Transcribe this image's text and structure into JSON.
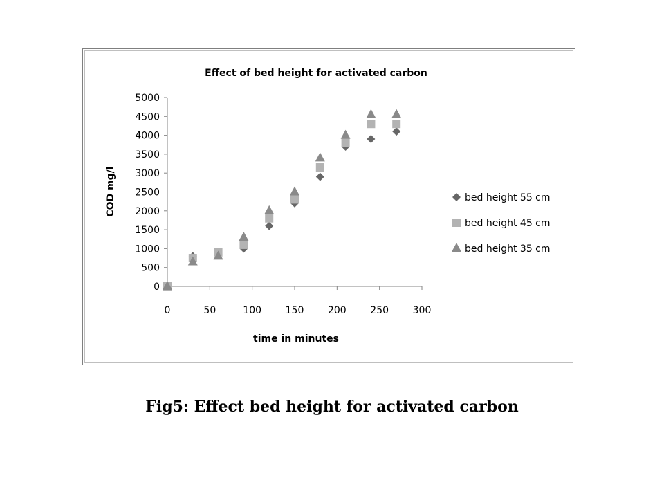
{
  "caption": "Fig5: Effect bed height for activated carbon",
  "chart_data": {
    "type": "scatter",
    "title": "Effect of bed height for activated carbon",
    "xlabel": "time in minutes",
    "ylabel": "COD mg/l",
    "xlim": [
      0,
      300
    ],
    "ylim": [
      0,
      5000
    ],
    "x_ticks": [
      0,
      50,
      100,
      150,
      200,
      250,
      300
    ],
    "y_ticks": [
      0,
      500,
      1000,
      1500,
      2000,
      2500,
      3000,
      3500,
      4000,
      4500,
      5000
    ],
    "grid": false,
    "legend_position": "right",
    "series": [
      {
        "name": "bed height 55 cm",
        "marker": "diamond",
        "color": "#666666",
        "x": [
          0,
          30,
          60,
          90,
          120,
          150,
          180,
          210,
          240,
          270
        ],
        "y": [
          0,
          800,
          850,
          1000,
          1600,
          2200,
          2900,
          3700,
          3900,
          4100
        ]
      },
      {
        "name": "bed height 45 cm",
        "marker": "square",
        "color": "#b3b3b3",
        "x": [
          0,
          30,
          60,
          90,
          120,
          150,
          180,
          210,
          240,
          270
        ],
        "y": [
          0,
          750,
          900,
          1100,
          1800,
          2300,
          3150,
          3800,
          4300,
          4300
        ]
      },
      {
        "name": "bed height 35 cm",
        "marker": "triangle",
        "color": "#8a8a8a",
        "x": [
          0,
          30,
          60,
          90,
          120,
          150,
          180,
          210,
          240,
          270
        ],
        "y": [
          0,
          650,
          800,
          1300,
          2000,
          2500,
          3400,
          4000,
          4550,
          4550
        ]
      }
    ]
  }
}
